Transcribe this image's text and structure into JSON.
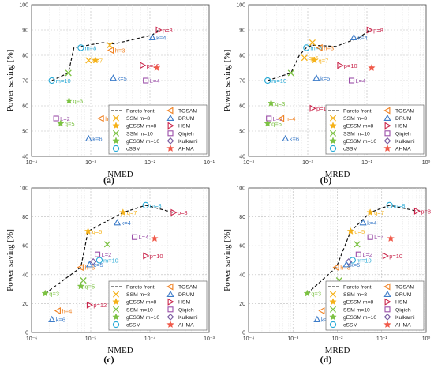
{
  "colors": {
    "Pareto front": "#000000",
    "SSM m=8": "#f5b21a",
    "gESSM m=8": "#f5b21a",
    "SSM m=10": "#7cc243",
    "gESSM m=10": "#7cc243",
    "cSSM": "#27a9d6",
    "TOSAM": "#f08020",
    "DRUM": "#3d7cc9",
    "HSM": "#c9244a",
    "Qiqieh": "#9b4fa8",
    "Kulkarni": "#7a5aa0",
    "AHMA": "#f05a4a"
  },
  "legend": {
    "left": [
      "Pareto front",
      "SSM m=8",
      "gESSM m=8",
      "SSM m=10",
      "gESSM m=10",
      "cSSM"
    ],
    "right": [
      "TOSAM",
      "DRUM",
      "HSM",
      "Qiqieh",
      "Kulkarni",
      "AHMA"
    ],
    "markers": {
      "Pareto front": "line",
      "SSM m=8": "x",
      "gESSM m=8": "star",
      "SSM m=10": "x",
      "gESSM m=10": "star",
      "cSSM": "circle",
      "TOSAM": "tri-left",
      "DRUM": "tri-up",
      "HSM": "tri-right",
      "Qiqieh": "square",
      "Kulkarni": "diamond",
      "AHMA": "star"
    }
  },
  "chart_data": [
    {
      "panel": "(a)",
      "type": "scatter",
      "xlabel": "NMED",
      "ylabel": "Power saving [%]",
      "xscale": "log",
      "xlim": [
        0.0001,
        0.1
      ],
      "ylim": [
        40,
        100
      ],
      "xticks": [
        "10⁻⁴",
        "10⁻³",
        "10⁻²",
        "10⁻¹"
      ],
      "yticks": [
        "40",
        "50",
        "60",
        "70",
        "80",
        "90",
        "100"
      ],
      "grid": true,
      "legend_position": "bottom-right",
      "pareto_front": [
        [
          0.00022,
          70
        ],
        [
          0.00042,
          73
        ],
        [
          0.00052,
          83
        ],
        [
          0.0016,
          85
        ],
        [
          0.0025,
          84.5
        ],
        [
          0.011,
          88
        ],
        [
          0.014,
          90
        ]
      ],
      "points": [
        {
          "series": "cSSM",
          "label": "m=10",
          "x": 0.00022,
          "y": 70
        },
        {
          "series": "SSM m=10",
          "label": "",
          "x": 0.00042,
          "y": 73
        },
        {
          "series": "cSSM",
          "label": "m=8",
          "x": 0.00068,
          "y": 83
        },
        {
          "series": "SSM m=8",
          "label": "q=7",
          "x": 0.00092,
          "y": 78
        },
        {
          "series": "gESSM m=8",
          "label": "",
          "x": 0.0012,
          "y": 78
        },
        {
          "series": "TOSAM",
          "label": "h=3",
          "x": 0.0022,
          "y": 82
        },
        {
          "series": "SSM m=8",
          "label": "",
          "x": 0.0021,
          "y": 84
        },
        {
          "series": "gESSM m=10",
          "label": "q=3",
          "x": 0.00043,
          "y": 62
        },
        {
          "series": "Qiqieh",
          "label": "L=2",
          "x": 0.00026,
          "y": 55
        },
        {
          "series": "gESSM m=10",
          "label": "q=5",
          "x": 0.00031,
          "y": 53
        },
        {
          "series": "DRUM",
          "label": "k=6",
          "x": 0.00092,
          "y": 47
        },
        {
          "series": "TOSAM",
          "label": "h=4",
          "x": 0.0015,
          "y": 55
        },
        {
          "series": "DRUM",
          "label": "k=5",
          "x": 0.0024,
          "y": 71
        },
        {
          "series": "HSM",
          "label": "p=12",
          "x": 0.0037,
          "y": 58
        },
        {
          "series": "HSM",
          "label": "p=10",
          "x": 0.0075,
          "y": 76
        },
        {
          "series": "Qiqieh",
          "label": "L=4",
          "x": 0.0085,
          "y": 70
        },
        {
          "series": "Kulkarni",
          "label": "",
          "x": 0.0095,
          "y": 52
        },
        {
          "series": "AHMA",
          "label": "",
          "x": 0.013,
          "y": 75
        },
        {
          "series": "DRUM",
          "label": "k=4",
          "x": 0.011,
          "y": 87
        },
        {
          "series": "HSM",
          "label": "p=8",
          "x": 0.014,
          "y": 90
        }
      ]
    },
    {
      "panel": "(b)",
      "type": "scatter",
      "xlabel": "MRED",
      "ylabel": "Power saving [%]",
      "xscale": "log",
      "xlim": [
        0.001,
        1
      ],
      "ylim": [
        40,
        100
      ],
      "xticks": [
        "10⁻³",
        "10⁻²",
        "10⁻¹",
        "10⁰"
      ],
      "yticks": [
        "40",
        "50",
        "60",
        "70",
        "80",
        "90",
        "100"
      ],
      "grid": true,
      "legend_position": "bottom-right",
      "pareto_front": [
        [
          0.0021,
          70
        ],
        [
          0.0052,
          73
        ],
        [
          0.0072,
          80
        ],
        [
          0.0095,
          83
        ],
        [
          0.012,
          84
        ],
        [
          0.03,
          83.5
        ],
        [
          0.075,
          87
        ],
        [
          0.11,
          90
        ]
      ],
      "points": [
        {
          "series": "cSSM",
          "label": "m=10",
          "x": 0.0021,
          "y": 70
        },
        {
          "series": "SSM m=10",
          "label": "",
          "x": 0.0052,
          "y": 73
        },
        {
          "series": "cSSM",
          "label": "m=8",
          "x": 0.0095,
          "y": 83
        },
        {
          "series": "SSM m=8",
          "label": "q=5",
          "x": 0.0088,
          "y": 79
        },
        {
          "series": "gESSM m=8",
          "label": "q=7",
          "x": 0.013,
          "y": 78
        },
        {
          "series": "TOSAM",
          "label": "h=3",
          "x": 0.016,
          "y": 83
        },
        {
          "series": "SSM m=8",
          "label": "",
          "x": 0.012,
          "y": 85
        },
        {
          "series": "gESSM m=10",
          "label": "q=3",
          "x": 0.0024,
          "y": 61
        },
        {
          "series": "Qiqieh",
          "label": "L=2",
          "x": 0.0022,
          "y": 55
        },
        {
          "series": "gESSM m=10",
          "label": "q=5",
          "x": 0.0021,
          "y": 53
        },
        {
          "series": "DRUM",
          "label": "k=6",
          "x": 0.0042,
          "y": 47
        },
        {
          "series": "TOSAM",
          "label": "h=4",
          "x": 0.0036,
          "y": 55
        },
        {
          "series": "DRUM",
          "label": "k=5",
          "x": 0.014,
          "y": 71
        },
        {
          "series": "HSM",
          "label": "p=12",
          "x": 0.012,
          "y": 59
        },
        {
          "series": "HSM",
          "label": "p=10",
          "x": 0.035,
          "y": 76
        },
        {
          "series": "Qiqieh",
          "label": "L=4",
          "x": 0.055,
          "y": 70
        },
        {
          "series": "Kulkarni",
          "label": "",
          "x": 0.033,
          "y": 52
        },
        {
          "series": "AHMA",
          "label": "",
          "x": 0.12,
          "y": 75
        },
        {
          "series": "DRUM",
          "label": "k=4",
          "x": 0.06,
          "y": 87
        },
        {
          "series": "HSM",
          "label": "p=8",
          "x": 0.11,
          "y": 90
        }
      ]
    },
    {
      "panel": "(c)",
      "type": "scatter",
      "xlabel": "NMED",
      "ylabel": "Power saving [%]",
      "xscale": "log",
      "xlim": [
        1e-06,
        0.001
      ],
      "ylim": [
        0,
        100
      ],
      "xticks": [
        "10⁻⁶",
        "10⁻⁵",
        "10⁻⁴",
        "10⁻³"
      ],
      "yticks": [
        "0",
        "20",
        "40",
        "60",
        "80",
        "100"
      ],
      "grid": true,
      "legend_position": "bottom-right",
      "pareto_front": [
        [
          1.7e-06,
          27
        ],
        [
          6.8e-06,
          45
        ],
        [
          9e-06,
          70
        ],
        [
          3.5e-05,
          83
        ],
        [
          8.5e-05,
          88
        ],
        [
          0.00025,
          83
        ]
      ],
      "points": [
        {
          "series": "gESSM m=10",
          "label": "q=3",
          "x": 1.7e-06,
          "y": 27
        },
        {
          "series": "TOSAM",
          "label": "h=3",
          "x": 6.8e-06,
          "y": 45
        },
        {
          "series": "gESSM m=8",
          "label": "q=5",
          "x": 9e-06,
          "y": 70
        },
        {
          "series": "gESSM m=8",
          "label": "q=7",
          "x": 3.5e-05,
          "y": 83
        },
        {
          "series": "cSSM",
          "label": "m=8",
          "x": 8.5e-05,
          "y": 88
        },
        {
          "series": "HSM",
          "label": "p=8",
          "x": 0.00025,
          "y": 83
        },
        {
          "series": "DRUM",
          "label": "k=4",
          "x": 2.8e-05,
          "y": 76
        },
        {
          "series": "Qiqieh",
          "label": "L=4",
          "x": 5.5e-05,
          "y": 66
        },
        {
          "series": "AHMA",
          "label": "",
          "x": 0.00012,
          "y": 65
        },
        {
          "series": "SSM m=10",
          "label": "",
          "x": 1.9e-05,
          "y": 61
        },
        {
          "series": "HSM",
          "label": "p=10",
          "x": 8.5e-05,
          "y": 53
        },
        {
          "series": "Qiqieh",
          "label": "L=2",
          "x": 1.3e-05,
          "y": 54
        },
        {
          "series": "cSSM",
          "label": "m=10",
          "x": 1.4e-05,
          "y": 50
        },
        {
          "series": "Kulkarni",
          "label": "",
          "x": 1.1e-05,
          "y": 49
        },
        {
          "series": "DRUM",
          "label": "k=5",
          "x": 9.5e-06,
          "y": 47
        },
        {
          "series": "gESSM m=10",
          "label": "q=5",
          "x": 6.8e-06,
          "y": 32
        },
        {
          "series": "SSM m=10",
          "label": "",
          "x": 7.5e-06,
          "y": 36
        },
        {
          "series": "HSM",
          "label": "p=12",
          "x": 9.5e-06,
          "y": 19
        },
        {
          "series": "TOSAM",
          "label": "h=4",
          "x": 2.8e-06,
          "y": 15
        },
        {
          "series": "DRUM",
          "label": "k=6",
          "x": 2.2e-06,
          "y": 9
        }
      ]
    },
    {
      "panel": "(d)",
      "type": "scatter",
      "xlabel": "MRED",
      "ylabel": "Power saving [%]",
      "xscale": "log",
      "xlim": [
        0.0001,
        1
      ],
      "ylim": [
        0,
        100
      ],
      "xticks": [
        "10⁻⁴",
        "10⁻³",
        "10⁻²",
        "10⁻¹",
        "10⁰"
      ],
      "yticks": [
        "0",
        "20",
        "40",
        "60",
        "80",
        "100"
      ],
      "grid": true,
      "legend_position": "bottom-right",
      "pareto_front": [
        [
          0.0021,
          27
        ],
        [
          0.0095,
          45
        ],
        [
          0.02,
          70
        ],
        [
          0.055,
          83
        ],
        [
          0.15,
          88
        ],
        [
          0.62,
          84
        ]
      ],
      "points": [
        {
          "series": "gESSM m=10",
          "label": "q=3",
          "x": 0.0021,
          "y": 27
        },
        {
          "series": "TOSAM",
          "label": "h=3",
          "x": 0.0095,
          "y": 45
        },
        {
          "series": "gESSM m=8",
          "label": "q=5",
          "x": 0.02,
          "y": 70
        },
        {
          "series": "gESSM m=8",
          "label": "q=7",
          "x": 0.055,
          "y": 83
        },
        {
          "series": "cSSM",
          "label": "m=8",
          "x": 0.15,
          "y": 88
        },
        {
          "series": "HSM",
          "label": "p=8",
          "x": 0.62,
          "y": 84
        },
        {
          "series": "DRUM",
          "label": "k=4",
          "x": 0.038,
          "y": 76
        },
        {
          "series": "Qiqieh",
          "label": "L=4",
          "x": 0.055,
          "y": 66
        },
        {
          "series": "AHMA",
          "label": "",
          "x": 0.16,
          "y": 65
        },
        {
          "series": "SSM m=10",
          "label": "",
          "x": 0.028,
          "y": 61
        },
        {
          "series": "HSM",
          "label": "p=10",
          "x": 0.12,
          "y": 53
        },
        {
          "series": "Qiqieh",
          "label": "L=2",
          "x": 0.03,
          "y": 54
        },
        {
          "series": "cSSM",
          "label": "m=10",
          "x": 0.022,
          "y": 50
        },
        {
          "series": "Kulkarni",
          "label": "",
          "x": 0.018,
          "y": 49
        },
        {
          "series": "DRUM",
          "label": "k=5",
          "x": 0.016,
          "y": 47
        },
        {
          "series": "gESSM m=10",
          "label": "q=5",
          "x": 0.0095,
          "y": 32
        },
        {
          "series": "SSM m=10",
          "label": "",
          "x": 0.011,
          "y": 36
        },
        {
          "series": "TOSAM",
          "label": "h=4",
          "x": 0.0045,
          "y": 15
        },
        {
          "series": "DRUM",
          "label": "k=6",
          "x": 0.0035,
          "y": 9
        }
      ]
    }
  ]
}
